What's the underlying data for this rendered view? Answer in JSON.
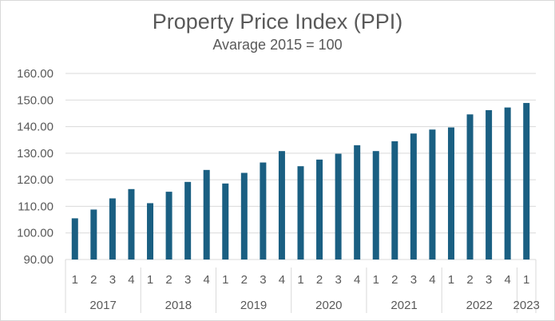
{
  "chart_data": {
    "type": "bar",
    "title": "Property Price Index (PPI)",
    "subtitle": "Avarage 2015 = 100",
    "ylim": [
      90,
      160
    ],
    "yticks": [
      "90.00",
      "100.00",
      "110.00",
      "120.00",
      "130.00",
      "140.00",
      "150.00",
      "160.00"
    ],
    "color": "#1a5f82",
    "quarters": [
      "1",
      "2",
      "3",
      "4",
      "1",
      "2",
      "3",
      "4",
      "1",
      "2",
      "3",
      "4",
      "1",
      "2",
      "3",
      "4",
      "1",
      "2",
      "3",
      "4",
      "1",
      "2",
      "3",
      "4",
      "1"
    ],
    "years": [
      {
        "label": "2017",
        "count": 4
      },
      {
        "label": "2018",
        "count": 4
      },
      {
        "label": "2019",
        "count": 4
      },
      {
        "label": "2020",
        "count": 4
      },
      {
        "label": "2021",
        "count": 4
      },
      {
        "label": "2022",
        "count": 4
      },
      {
        "label": "2023",
        "count": 1
      }
    ],
    "values": [
      105.5,
      108.8,
      113.0,
      116.5,
      111.2,
      115.5,
      119.2,
      123.7,
      118.6,
      122.6,
      126.5,
      130.8,
      125.1,
      127.6,
      129.8,
      133.0,
      130.8,
      134.5,
      137.4,
      138.9,
      139.7,
      144.6,
      146.2,
      147.2,
      148.9
    ]
  }
}
